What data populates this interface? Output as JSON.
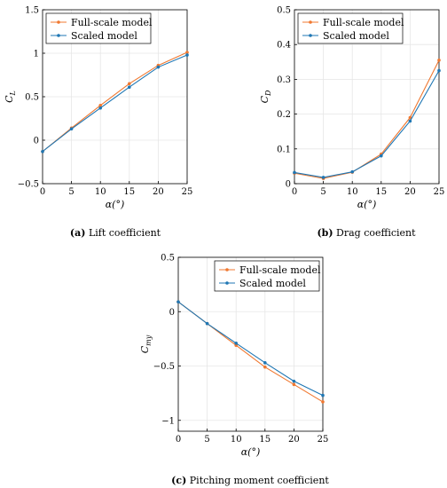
{
  "colors": {
    "full_scale": "#f07830",
    "scaled": "#1f77b4"
  },
  "chart_data": [
    {
      "type": "line",
      "caption_tag": "(a)",
      "caption_text": " Lift coefficient",
      "xlabel": "α(°)",
      "ylabel": "C_L",
      "ylabel_main": "C",
      "ylabel_sub": "L",
      "xlim": [
        0,
        25
      ],
      "ylim": [
        -0.5,
        1.5
      ],
      "xticks": [
        0,
        5,
        10,
        15,
        20,
        25
      ],
      "yticks": [
        -0.5,
        0,
        0.5,
        1,
        1.5
      ],
      "ytick_labels": [
        "−0.5",
        "0",
        "0.5",
        "1",
        "1.5"
      ],
      "grid": true,
      "legend_position": "top-left",
      "x": [
        0,
        5,
        10,
        15,
        20,
        25
      ],
      "series": [
        {
          "name": "Full-scale model",
          "color": "#f07830",
          "values": [
            -0.13,
            0.14,
            0.4,
            0.65,
            0.86,
            1.01
          ]
        },
        {
          "name": "Scaled model",
          "color": "#1f77b4",
          "values": [
            -0.13,
            0.13,
            0.37,
            0.61,
            0.84,
            0.98
          ]
        }
      ]
    },
    {
      "type": "line",
      "caption_tag": "(b)",
      "caption_text": " Drag coefficient",
      "xlabel": "α(°)",
      "ylabel": "C_D",
      "ylabel_main": "C",
      "ylabel_sub": "D",
      "xlim": [
        0,
        25
      ],
      "ylim": [
        0,
        0.5
      ],
      "xticks": [
        0,
        5,
        10,
        15,
        20,
        25
      ],
      "yticks": [
        0,
        0.1,
        0.2,
        0.3,
        0.4,
        0.5
      ],
      "ytick_labels": [
        "0",
        "0.1",
        "0.2",
        "0.3",
        "0.4",
        "0.5"
      ],
      "grid": true,
      "legend_position": "top-left",
      "x": [
        0,
        5,
        10,
        15,
        20,
        25
      ],
      "series": [
        {
          "name": "Full-scale model",
          "color": "#f07830",
          "values": [
            0.03,
            0.015,
            0.033,
            0.085,
            0.19,
            0.355
          ]
        },
        {
          "name": "Scaled model",
          "color": "#1f77b4",
          "values": [
            0.032,
            0.018,
            0.034,
            0.08,
            0.18,
            0.325
          ]
        }
      ]
    },
    {
      "type": "line",
      "caption_tag": "(c)",
      "caption_text": " Pitching moment coefficient",
      "xlabel": "α(°)",
      "ylabel": "C_my",
      "ylabel_main": "C",
      "ylabel_sub": "my",
      "xlim": [
        0,
        25
      ],
      "ylim": [
        -1.1,
        0.5
      ],
      "xticks": [
        0,
        5,
        10,
        15,
        20,
        25
      ],
      "yticks": [
        -1,
        -0.5,
        0,
        0.5
      ],
      "ytick_labels": [
        "−1",
        "−0.5",
        "0",
        "0.5"
      ],
      "grid": true,
      "legend_position": "top-right",
      "x": [
        0,
        5,
        10,
        15,
        20,
        25
      ],
      "series": [
        {
          "name": "Full-scale model",
          "color": "#f07830",
          "values": [
            0.09,
            -0.11,
            -0.31,
            -0.51,
            -0.67,
            -0.83
          ]
        },
        {
          "name": "Scaled model",
          "color": "#1f77b4",
          "values": [
            0.09,
            -0.11,
            -0.29,
            -0.47,
            -0.64,
            -0.77
          ]
        }
      ]
    }
  ]
}
